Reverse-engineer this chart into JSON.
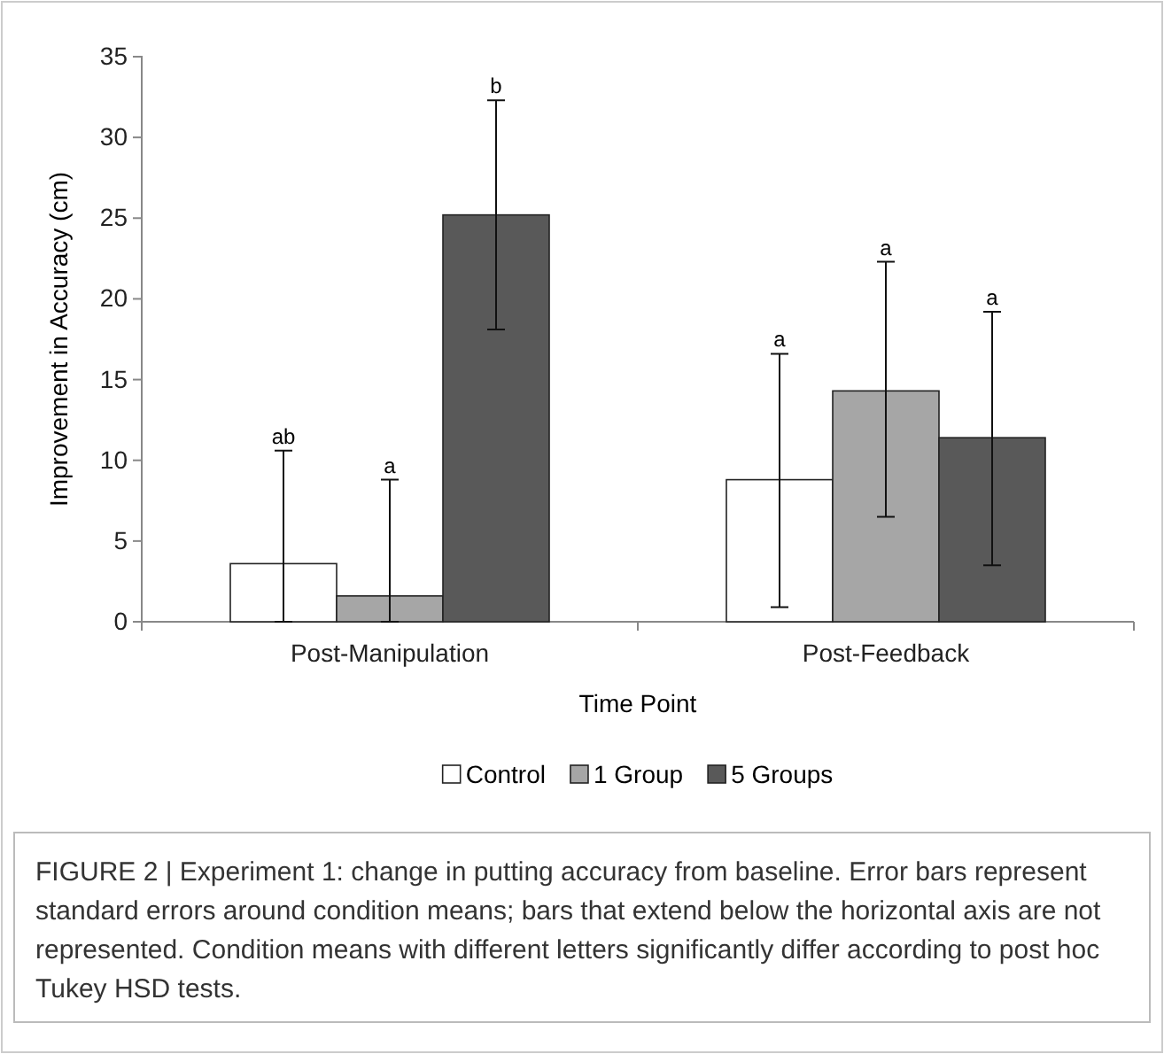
{
  "chart_data": {
    "type": "bar",
    "ylabel": "Improvement in Accuracy (cm)",
    "xlabel": "Time Point",
    "categories": [
      "Post-Manipulation",
      "Post-Feedback"
    ],
    "series": [
      {
        "name": "Control",
        "color": "#ffffff",
        "values": [
          3.6,
          8.8
        ],
        "errors": [
          [
            0,
            10.6
          ],
          [
            0.9,
            16.6
          ]
        ]
      },
      {
        "name": "1 Group",
        "color": "#a6a6a6",
        "values": [
          1.6,
          14.3
        ],
        "errors": [
          [
            0,
            8.8
          ],
          [
            6.5,
            22.3
          ]
        ]
      },
      {
        "name": "5 Groups",
        "color": "#595959",
        "values": [
          25.2,
          11.4
        ],
        "errors": [
          [
            18.1,
            32.3
          ],
          [
            3.5,
            19.2
          ]
        ]
      }
    ],
    "ylim": [
      0,
      35
    ],
    "yticks": [
      0,
      5,
      10,
      15,
      20,
      25,
      30,
      35
    ],
    "grid": false,
    "legend": "bottom",
    "annotations": [
      "ab",
      "a",
      "b",
      "a",
      "a",
      "a",
      "FIGURE 2 | Experiment 1: change in putting accuracy from baseline. Error bars represent standard errors around condition means; bars that extend below the horizontal axis are not represented. Condition means with different letters significantly differ according to post hoc Tukey HSD tests."
    ]
  }
}
